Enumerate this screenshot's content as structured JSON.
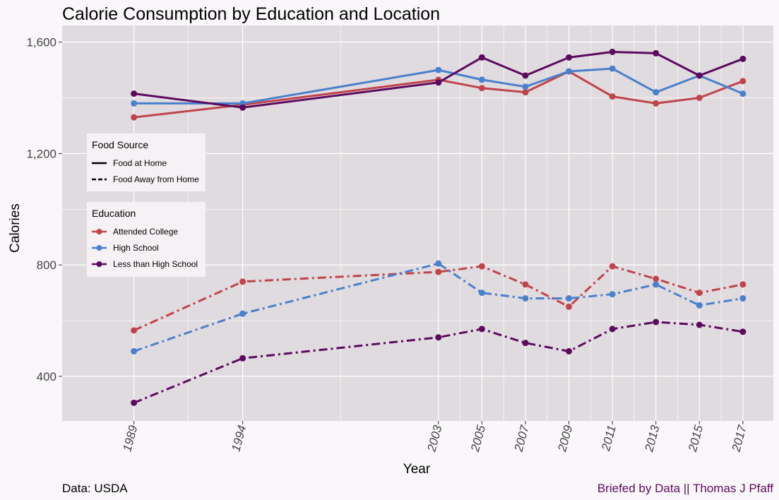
{
  "chart_data": {
    "type": "line",
    "title": "Calorie Consumption by Education and Location",
    "xlabel": "Year",
    "ylabel": "Calories",
    "caption_left": "Data: USDA",
    "caption_right": "Briefed by Data || Thomas J Pfaff",
    "x": [
      1989,
      1994,
      2003,
      2005,
      2007,
      2009,
      2011,
      2013,
      2015,
      2017
    ],
    "x_tick_labels": [
      "1989",
      "1994",
      "2003",
      "2005",
      "2007",
      "2009",
      "2011",
      "2013",
      "2015",
      "2017"
    ],
    "xlim": [
      1985.7,
      2018.4
    ],
    "ylim": [
      240,
      1660
    ],
    "y_ticks": [
      400,
      800,
      1200,
      1600
    ],
    "y_tick_labels": [
      "400",
      "800",
      "1,200",
      "1,600"
    ],
    "grid": true,
    "legend_position": "left, inside plot",
    "legends": {
      "food_source": {
        "title": "Food Source",
        "items": [
          {
            "label": "Food at Home",
            "dash": "solid"
          },
          {
            "label": "Food Away from Home",
            "dash": "dashed"
          }
        ]
      },
      "education": {
        "title": "Education",
        "items": [
          {
            "label": "Attended College",
            "color": "#c0444b"
          },
          {
            "label": "High School",
            "color": "#4a80cc"
          },
          {
            "label": "Less than High School",
            "color": "#5c0a5e"
          }
        ]
      }
    },
    "series": [
      {
        "education": "Attended College",
        "food_source": "Food at Home",
        "color": "#c0444b",
        "dash": "solid",
        "values": [
          1330,
          1375,
          1465,
          1435,
          1420,
          1495,
          1405,
          1380,
          1400,
          1460
        ]
      },
      {
        "education": "High School",
        "food_source": "Food at Home",
        "color": "#4a80cc",
        "dash": "solid",
        "values": [
          1380,
          1380,
          1500,
          1465,
          1440,
          1495,
          1505,
          1420,
          1480,
          1415
        ]
      },
      {
        "education": "Less than High School",
        "food_source": "Food at Home",
        "color": "#5c0a5e",
        "dash": "solid",
        "values": [
          1415,
          1365,
          1455,
          1545,
          1480,
          1545,
          1565,
          1560,
          1480,
          1540
        ]
      },
      {
        "education": "Attended College",
        "food_source": "Food Away from Home",
        "color": "#c0444b",
        "dash": "dashed",
        "values": [
          565,
          740,
          775,
          795,
          730,
          650,
          795,
          750,
          700,
          730
        ]
      },
      {
        "education": "High School",
        "food_source": "Food Away from Home",
        "color": "#4a80cc",
        "dash": "dashed",
        "values": [
          490,
          625,
          805,
          700,
          680,
          680,
          695,
          730,
          655,
          680
        ]
      },
      {
        "education": "Less than High School",
        "food_source": "Food Away from Home",
        "color": "#5c0a5e",
        "dash": "dashed",
        "values": [
          305,
          465,
          540,
          570,
          520,
          490,
          570,
          595,
          585,
          560
        ]
      }
    ]
  },
  "colors": {
    "page_background": "#faf7fa",
    "panel_background": "#e0dbdf",
    "grid": "#ffffff",
    "legend_background": "#f5f1f4",
    "caption_right": "#5c0a5e"
  }
}
